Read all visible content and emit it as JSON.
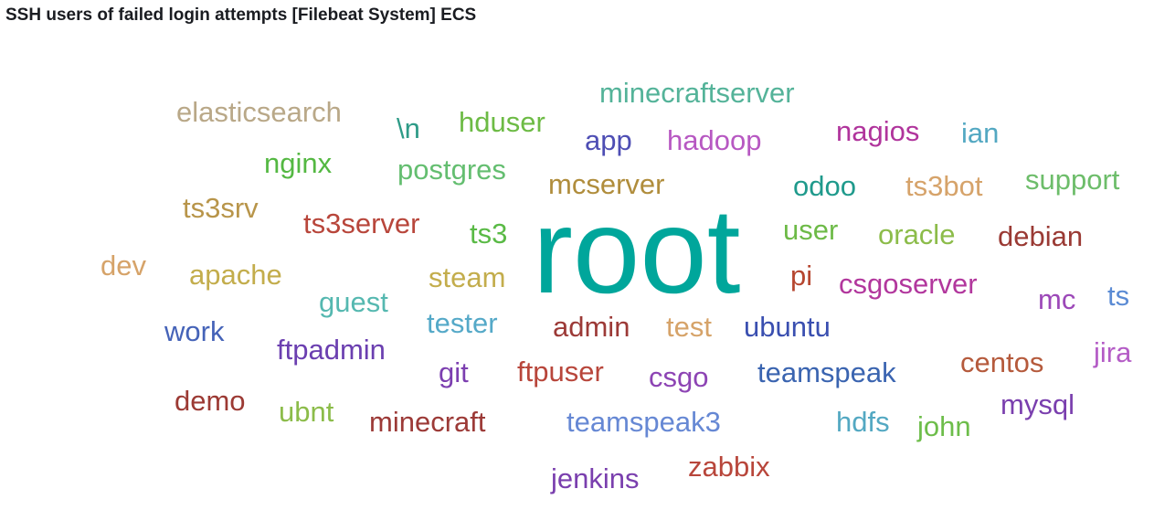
{
  "panel": {
    "title": "SSH users of failed login attempts [Filebeat System] ECS"
  },
  "chart_data": {
    "type": "wordcloud",
    "title": "SSH users of failed login attempts [Filebeat System] ECS",
    "words": [
      {
        "text": "root",
        "weight": 100,
        "color": "#00a69b"
      },
      {
        "text": "minecraftserver",
        "weight": 12,
        "color": "#54b399"
      },
      {
        "text": "elasticsearch",
        "weight": 12,
        "color": "#b9a888"
      },
      {
        "text": "\\n",
        "weight": 12,
        "color": "#2e9b87"
      },
      {
        "text": "hduser",
        "weight": 12,
        "color": "#6dbb45"
      },
      {
        "text": "app",
        "weight": 12,
        "color": "#4e4eb4"
      },
      {
        "text": "hadoop",
        "weight": 12,
        "color": "#b758c2"
      },
      {
        "text": "nagios",
        "weight": 12,
        "color": "#b0349c"
      },
      {
        "text": "ian",
        "weight": 12,
        "color": "#53a8c2"
      },
      {
        "text": "nginx",
        "weight": 12,
        "color": "#54b842"
      },
      {
        "text": "postgres",
        "weight": 12,
        "color": "#64be70"
      },
      {
        "text": "mcserver",
        "weight": 12,
        "color": "#b08d3c"
      },
      {
        "text": "odoo",
        "weight": 12,
        "color": "#1f9a8c"
      },
      {
        "text": "ts3bot",
        "weight": 12,
        "color": "#d6a36a"
      },
      {
        "text": "support",
        "weight": 12,
        "color": "#6dbd6a"
      },
      {
        "text": "ts3srv",
        "weight": 12,
        "color": "#b8954a"
      },
      {
        "text": "ts3server",
        "weight": 12,
        "color": "#b8463b"
      },
      {
        "text": "ts3",
        "weight": 12,
        "color": "#5aba46"
      },
      {
        "text": "user",
        "weight": 12,
        "color": "#6dba47"
      },
      {
        "text": "oracle",
        "weight": 12,
        "color": "#8cbc4a"
      },
      {
        "text": "debian",
        "weight": 12,
        "color": "#9a3a34"
      },
      {
        "text": "dev",
        "weight": 12,
        "color": "#d6a369"
      },
      {
        "text": "apache",
        "weight": 12,
        "color": "#c3ad4c"
      },
      {
        "text": "steam",
        "weight": 12,
        "color": "#c3ad4c"
      },
      {
        "text": "pi",
        "weight": 12,
        "color": "#b6462f"
      },
      {
        "text": "csgoserver",
        "weight": 12,
        "color": "#b2379d"
      },
      {
        "text": "mc",
        "weight": 12,
        "color": "#9c48b8"
      },
      {
        "text": "ts",
        "weight": 12,
        "color": "#5b8bd4"
      },
      {
        "text": "guest",
        "weight": 12,
        "color": "#55b8b0"
      },
      {
        "text": "work",
        "weight": 12,
        "color": "#4563b8"
      },
      {
        "text": "tester",
        "weight": 12,
        "color": "#55a9c8"
      },
      {
        "text": "admin",
        "weight": 12,
        "color": "#9c3a37"
      },
      {
        "text": "test",
        "weight": 12,
        "color": "#d6a369"
      },
      {
        "text": "ubuntu",
        "weight": 12,
        "color": "#3a4fb0"
      },
      {
        "text": "ftpadmin",
        "weight": 12,
        "color": "#6b3fb0"
      },
      {
        "text": "jira",
        "weight": 12,
        "color": "#b45cc6"
      },
      {
        "text": "centos",
        "weight": 12,
        "color": "#b55a3c"
      },
      {
        "text": "git",
        "weight": 12,
        "color": "#7c3fb0"
      },
      {
        "text": "ftpuser",
        "weight": 12,
        "color": "#b8463b"
      },
      {
        "text": "csgo",
        "weight": 12,
        "color": "#8d44b4"
      },
      {
        "text": "teamspeak",
        "weight": 12,
        "color": "#3a64b0"
      },
      {
        "text": "demo",
        "weight": 12,
        "color": "#9c3a34"
      },
      {
        "text": "mysql",
        "weight": 12,
        "color": "#7a3fae"
      },
      {
        "text": "ubnt",
        "weight": 12,
        "color": "#8cbc4a"
      },
      {
        "text": "minecraft",
        "weight": 12,
        "color": "#9c3a37"
      },
      {
        "text": "teamspeak3",
        "weight": 12,
        "color": "#6688d4"
      },
      {
        "text": "hdfs",
        "weight": 12,
        "color": "#53a8c2"
      },
      {
        "text": "john",
        "weight": 12,
        "color": "#6dbd4a"
      },
      {
        "text": "zabbix",
        "weight": 12,
        "color": "#b8463b"
      },
      {
        "text": "jenkins",
        "weight": 12,
        "color": "#7a3fae"
      }
    ]
  }
}
